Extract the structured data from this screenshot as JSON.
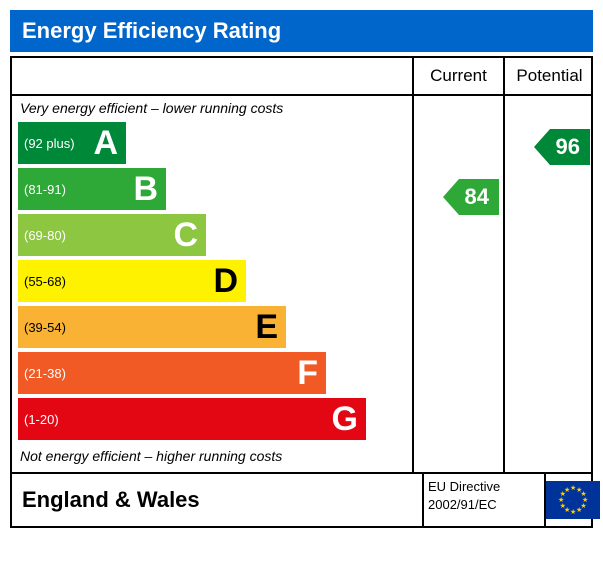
{
  "title": "Energy Efficiency Rating",
  "title_bar_color": "#0066cc",
  "header": {
    "current": "Current",
    "potential": "Potential"
  },
  "notes": {
    "top": "Very energy efficient – lower running costs",
    "bottom": "Not energy efficient – higher running costs"
  },
  "layout": {
    "bands_col_width": 400,
    "value_col_width": 89,
    "band_height": 42,
    "band_gap": 4,
    "note_height": 26,
    "base_bar_width": 108,
    "bar_step": 40
  },
  "bands": [
    {
      "letter": "A",
      "range": "(92 plus)",
      "color": "#008839",
      "text_color": "#ffffff"
    },
    {
      "letter": "B",
      "range": "(81-91)",
      "color": "#2ea836",
      "text_color": "#ffffff"
    },
    {
      "letter": "C",
      "range": "(69-80)",
      "color": "#8dc641",
      "text_color": "#ffffff"
    },
    {
      "letter": "D",
      "range": "(55-68)",
      "color": "#fff200",
      "text_color": "#000000"
    },
    {
      "letter": "E",
      "range": "(39-54)",
      "color": "#f9b233",
      "text_color": "#000000"
    },
    {
      "letter": "F",
      "range": "(21-38)",
      "color": "#f15a24",
      "text_color": "#ffffff"
    },
    {
      "letter": "G",
      "range": "(1-20)",
      "color": "#e30613",
      "text_color": "#ffffff"
    }
  ],
  "values": {
    "current": {
      "score": "84",
      "band_index": 1,
      "color": "#2ea836"
    },
    "potential": {
      "score": "96",
      "band_index": 0,
      "color": "#008839"
    }
  },
  "footer": {
    "region": "England & Wales",
    "directive_line1": "EU Directive",
    "directive_line2": "2002/91/EC"
  }
}
